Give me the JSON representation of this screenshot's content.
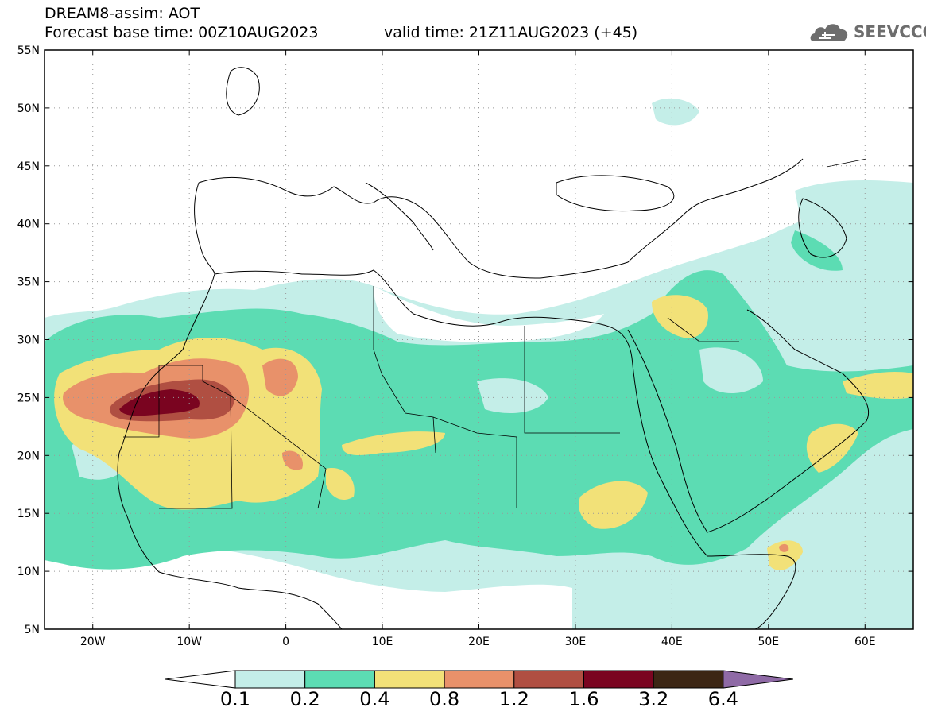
{
  "header": {
    "title": "DREAM8-assim: AOT",
    "base_time": "Forecast base time: 00Z10AUG2023",
    "valid_time": "valid time: 21Z11AUG2023 (+45)"
  },
  "logo": {
    "text": "SEEVCCC",
    "icon": "cloud-icon"
  },
  "map": {
    "lat_labels": [
      "55N",
      "50N",
      "45N",
      "40N",
      "35N",
      "30N",
      "25N",
      "20N",
      "15N",
      "10N",
      "5N"
    ],
    "lon_labels": [
      "20W",
      "10W",
      "0",
      "10E",
      "20E",
      "30E",
      "40E",
      "50E",
      "60E"
    ],
    "lat_range": [
      5,
      55
    ],
    "lon_range": [
      -25,
      65
    ],
    "field": "AOT",
    "grid": "dotted"
  },
  "colorbar": {
    "levels": [
      "0.1",
      "0.2",
      "0.4",
      "0.8",
      "1.2",
      "1.6",
      "3.2",
      "6.4"
    ],
    "colors": [
      "#c4eee8",
      "#5cdcb3",
      "#f2e178",
      "#e8916a",
      "#b04f42",
      "#7a0420",
      "#3c2614",
      "#8f6aa6"
    ],
    "below_color": "#ffffff"
  },
  "colors": {
    "c1": "#c4eee8",
    "c2": "#5cdcb3",
    "c3": "#f2e178",
    "c4": "#e8916a",
    "c5": "#b04f42",
    "c6": "#7a0420"
  }
}
